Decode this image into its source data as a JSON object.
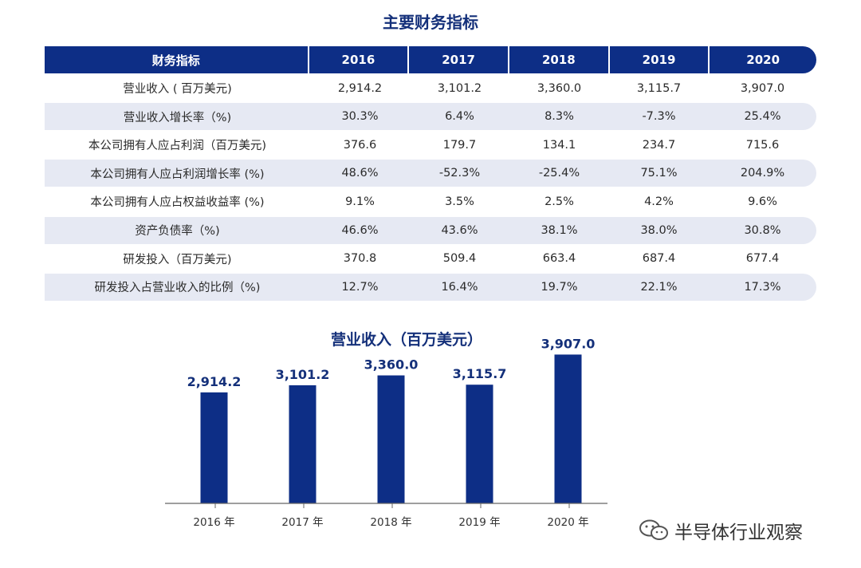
{
  "table": {
    "title": "主要财务指标",
    "header": {
      "label": "财务指标",
      "years": [
        "2016",
        "2017",
        "2018",
        "2019",
        "2020"
      ]
    },
    "rows": [
      {
        "label": "营业收入 ( 百万美元)",
        "values": [
          "2,914.2",
          "3,101.2",
          "3,360.0",
          "3,115.7",
          "3,907.0"
        ]
      },
      {
        "label": "营业收入增长率（%)",
        "values": [
          "30.3%",
          "6.4%",
          "8.3%",
          "-7.3%",
          "25.4%"
        ]
      },
      {
        "label": "本公司拥有人应占利润（百万美元)",
        "values": [
          "376.6",
          "179.7",
          "134.1",
          "234.7",
          "715.6"
        ]
      },
      {
        "label": "本公司拥有人应占利润增长率 (%)",
        "values": [
          "48.6%",
          "-52.3%",
          "-25.4%",
          "75.1%",
          "204.9%"
        ]
      },
      {
        "label": "本公司拥有人应占权益收益率 (%)",
        "values": [
          "9.1%",
          "3.5%",
          "2.5%",
          "4.2%",
          "9.6%"
        ]
      },
      {
        "label": "资产负债率（%)",
        "values": [
          "46.6%",
          "43.6%",
          "38.1%",
          "38.0%",
          "30.8%"
        ]
      },
      {
        "label": "研发投入（百万美元)",
        "values": [
          "370.8",
          "509.4",
          "663.4",
          "687.4",
          "677.4"
        ]
      },
      {
        "label": "研发投入占营业收入的比例（%)",
        "values": [
          "12.7%",
          "16.4%",
          "19.7%",
          "22.1%",
          "17.3%"
        ]
      }
    ]
  },
  "chart_data": {
    "type": "bar",
    "title": "营业收入（百万美元）",
    "categories": [
      "2016 年",
      "2017 年",
      "2018 年",
      "2019 年",
      "2020 年"
    ],
    "values": [
      2914.2,
      3101.2,
      3360.0,
      3115.7,
      3907.0
    ],
    "value_labels": [
      "2,914.2",
      "3,101.2",
      "3,360.0",
      "3,115.7",
      "3,907.0"
    ],
    "ylim": [
      0,
      4000
    ],
    "grid": false,
    "legend": "none",
    "bar_color": "#0d2e86",
    "label_color": "#14307a"
  },
  "colors": {
    "header_bg": "#0d2e86",
    "row_shade": "#e6e9f3"
  },
  "watermark": {
    "icon": "wechat-icon",
    "text": "半导体行业观察"
  }
}
